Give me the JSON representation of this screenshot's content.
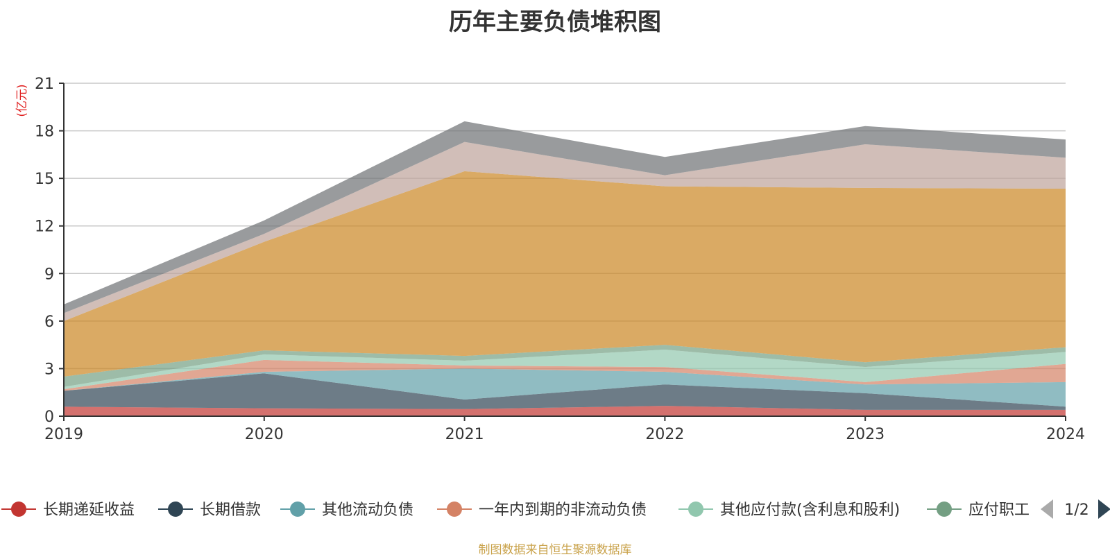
{
  "chart_data": {
    "type": "area",
    "stacked": true,
    "title": "历年主要负债堆积图",
    "unit": "(亿元)",
    "x": [
      "2019",
      "2020",
      "2021",
      "2022",
      "2023",
      "2024"
    ],
    "ylim": [
      0,
      21
    ],
    "yticks": [
      0,
      3,
      6,
      9,
      12,
      15,
      18,
      21
    ],
    "grid": true,
    "legend_position": "bottom",
    "legend_page": "1/2",
    "series": [
      {
        "name": "长期递延收益",
        "color": "#c23531",
        "values": [
          0.6,
          0.5,
          0.45,
          0.65,
          0.4,
          0.4
        ]
      },
      {
        "name": "长期借款",
        "color": "#2f4554",
        "values": [
          1.0,
          2.2,
          0.6,
          1.35,
          1.05,
          0.2
        ]
      },
      {
        "name": "其他流动负债",
        "color": "#61a0a8",
        "values": [
          0.0,
          0.1,
          1.95,
          0.8,
          0.55,
          1.55
        ]
      },
      {
        "name": "一年内到期的非流动负债",
        "color": "#d48265",
        "values": [
          0.1,
          0.75,
          0.2,
          0.3,
          0.15,
          1.15
        ]
      },
      {
        "name": "其他应付款(含利息和股利)",
        "color": "#91c7ae",
        "values": [
          0.15,
          0.35,
          0.3,
          1.1,
          0.95,
          0.75
        ]
      },
      {
        "name": "应付职工",
        "color": "#749f83",
        "values": [
          0.65,
          0.25,
          0.3,
          0.3,
          0.3,
          0.3
        ]
      },
      {
        "name": "",
        "color": "#ca8622",
        "values": [
          3.5,
          6.85,
          11.65,
          10.0,
          11.0,
          10.0
        ]
      },
      {
        "name": "",
        "color": "#bda29a",
        "values": [
          0.5,
          0.5,
          1.85,
          0.7,
          2.75,
          1.95
        ]
      },
      {
        "name": "",
        "color": "#6e7074",
        "values": [
          0.55,
          0.85,
          1.3,
          1.15,
          1.15,
          1.15
        ]
      }
    ]
  },
  "footer": {
    "source": "制图数据来自恒生聚源数据库"
  },
  "legend_nav": {
    "prev_icon": "triangle-left-icon",
    "next_icon": "triangle-right-icon"
  }
}
